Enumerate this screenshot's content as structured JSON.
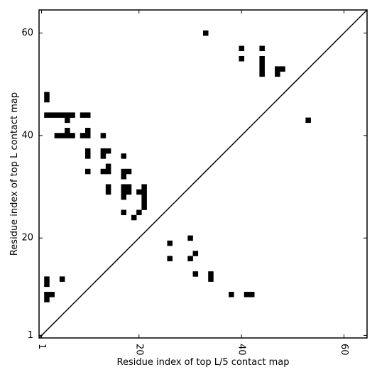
{
  "chart_data": {
    "type": "heatmap",
    "xlabel": "Residue index of top L/5 contact map",
    "ylabel": "Residue index of top L contact map",
    "xlim": [
      0.5,
      64.5
    ],
    "ylim": [
      0.5,
      64.5
    ],
    "xticks": [
      1,
      20,
      40,
      60
    ],
    "yticks": [
      1,
      20,
      40,
      60
    ],
    "xtick_labels": [
      "1",
      "20",
      "40",
      "60"
    ],
    "ytick_labels": [
      "1",
      "20",
      "40",
      "60"
    ],
    "diagonal_line": true,
    "cell_color": "#000000",
    "series": [
      {
        "values": [
          [
            33,
            60
          ],
          [
            40,
            57
          ],
          [
            44,
            57
          ],
          [
            40,
            55
          ],
          [
            44,
            55
          ],
          [
            44,
            54
          ],
          [
            44,
            53
          ],
          [
            44,
            52
          ],
          [
            47,
            53
          ],
          [
            48,
            53
          ],
          [
            47,
            52
          ],
          [
            2,
            48
          ],
          [
            2,
            47
          ],
          [
            2,
            44
          ],
          [
            3,
            44
          ],
          [
            4,
            44
          ],
          [
            5,
            44
          ],
          [
            6,
            44
          ],
          [
            7,
            44
          ],
          [
            9,
            44
          ],
          [
            10,
            44
          ],
          [
            6,
            43
          ],
          [
            6,
            41
          ],
          [
            10,
            41
          ],
          [
            4,
            40
          ],
          [
            5,
            40
          ],
          [
            6,
            40
          ],
          [
            7,
            40
          ],
          [
            9,
            40
          ],
          [
            10,
            40
          ],
          [
            13,
            40
          ],
          [
            10,
            37
          ],
          [
            13,
            37
          ],
          [
            14,
            37
          ],
          [
            10,
            36
          ],
          [
            13,
            36
          ],
          [
            17,
            36
          ],
          [
            14,
            34
          ],
          [
            10,
            33
          ],
          [
            13,
            33
          ],
          [
            14,
            33
          ],
          [
            17,
            33
          ],
          [
            18,
            33
          ],
          [
            17,
            32
          ],
          [
            14,
            30
          ],
          [
            17,
            30
          ],
          [
            18,
            30
          ],
          [
            21,
            30
          ],
          [
            14,
            29
          ],
          [
            17,
            29
          ],
          [
            18,
            29
          ],
          [
            20,
            29
          ],
          [
            21,
            29
          ],
          [
            17,
            28
          ],
          [
            21,
            28
          ],
          [
            21,
            27
          ],
          [
            21,
            26
          ],
          [
            17,
            25
          ],
          [
            20,
            25
          ],
          [
            19,
            24
          ],
          [
            30,
            20
          ],
          [
            26,
            19
          ],
          [
            31,
            17
          ],
          [
            26,
            16
          ],
          [
            30,
            16
          ],
          [
            31,
            13
          ],
          [
            34,
            13
          ],
          [
            2,
            12
          ],
          [
            5,
            12
          ],
          [
            34,
            12
          ],
          [
            2,
            11
          ],
          [
            2,
            9
          ],
          [
            3,
            9
          ],
          [
            38,
            9
          ],
          [
            41,
            9
          ],
          [
            42,
            9
          ],
          [
            2,
            8
          ],
          [
            53,
            43
          ]
        ]
      }
    ]
  }
}
